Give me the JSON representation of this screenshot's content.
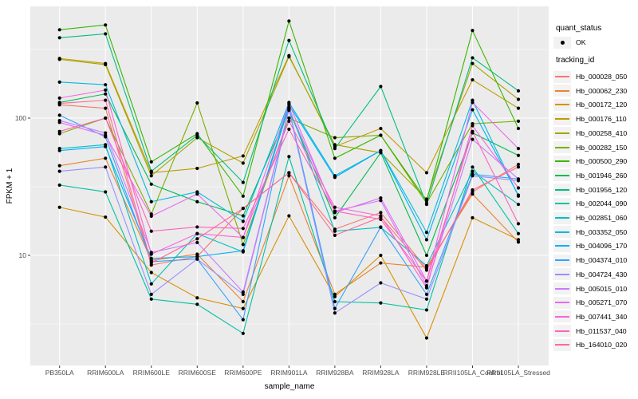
{
  "chart_style": {
    "panel_bg": "#EBEBEB",
    "grid_color": "#FFFFFF",
    "point_color": "#000000",
    "tick_color": "#333333",
    "legend_key_bg": "#F2F2F2"
  },
  "chart_data": {
    "type": "line",
    "title": "",
    "xlabel": "sample_name",
    "ylabel": "FPKM + 1",
    "y_scale": "log10",
    "y_ticks": [
      10,
      100
    ],
    "y_minor_ticks": [
      3.162,
      31.62,
      316.2
    ],
    "ylim": [
      1.6,
      650
    ],
    "grid": true,
    "legend_position": "right",
    "categories": [
      "PB350LA",
      "RRIM600LA",
      "RRIM600LE",
      "RRIM600SE",
      "RRIM600PE",
      "RRIM901LA",
      "RRIM928BA",
      "RRIM928LA",
      "RRIM928LE",
      "RRII105LA_Control",
      "RRII105LA_Stressed"
    ],
    "legend": {
      "quant_status_title": "quant_status",
      "quant_status_items": [
        {
          "label": "OK"
        }
      ],
      "tracking_title": "tracking_id"
    },
    "series": [
      {
        "name": "Hb_000028_050",
        "color": "#F8766D",
        "values": [
          125,
          118,
          8.5,
          9.8,
          22,
          40,
          15.5,
          20.5,
          8.0,
          29,
          46
        ]
      },
      {
        "name": "Hb_000062_230",
        "color": "#EA8331",
        "values": [
          45,
          51,
          9.2,
          10.2,
          4.6,
          38,
          5.2,
          8.8,
          8.2,
          28,
          12.5
        ]
      },
      {
        "name": "Hb_000172_120",
        "color": "#D89000",
        "values": [
          22.4,
          19,
          7.5,
          4.9,
          4.1,
          19.4,
          5.0,
          10,
          2.5,
          18.8,
          13
        ]
      },
      {
        "name": "Hb_000176_110",
        "color": "#C09B00",
        "values": [
          272,
          250,
          40,
          43,
          53,
          285,
          62,
          84,
          40,
          190,
          118
        ]
      },
      {
        "name": "Hb_000258_410",
        "color": "#A3A500",
        "values": [
          268,
          245,
          38,
          72,
          47,
          280,
          64,
          56,
          25.7,
          250,
          137
        ]
      },
      {
        "name": "Hb_000282_150",
        "color": "#7CAE00",
        "values": [
          77,
          100,
          20,
          129,
          12,
          100,
          72,
          75,
          24,
          91,
          95
        ]
      },
      {
        "name": "Hb_000500_290",
        "color": "#39B600",
        "values": [
          440,
          477,
          48,
          77,
          27,
          510,
          51,
          75,
          25,
          435,
          84
        ]
      },
      {
        "name": "Hb_001946_260",
        "color": "#00BB4E",
        "values": [
          130,
          150,
          33,
          24.6,
          19.4,
          114,
          18.8,
          56,
          10,
          78,
          53.5
        ]
      },
      {
        "name": "Hb_001956_120",
        "color": "#00BF7D",
        "values": [
          385,
          411,
          41,
          75,
          34,
          368,
          60,
          170,
          23.5,
          275,
          158
        ]
      },
      {
        "name": "Hb_002044_090",
        "color": "#00C1A3",
        "values": [
          32.5,
          29,
          4.8,
          4.4,
          2.7,
          52.4,
          4.6,
          4.5,
          4.0,
          44,
          14.4
        ]
      },
      {
        "name": "Hb_002851_060",
        "color": "#00BFC4",
        "values": [
          60,
          64,
          6.2,
          14.4,
          10.6,
          120,
          15,
          16,
          8.4,
          41,
          23.5
        ]
      },
      {
        "name": "Hb_003352_050",
        "color": "#00BAE0",
        "values": [
          183,
          175,
          24.6,
          29,
          17.7,
          130,
          38,
          58,
          14.7,
          135,
          27
        ]
      },
      {
        "name": "Hb_004096_170",
        "color": "#00B0F6",
        "values": [
          58,
          62,
          9.5,
          9.8,
          10.8,
          125,
          37,
          58,
          13,
          115,
          27.5
        ]
      },
      {
        "name": "Hb_004374_010",
        "color": "#35A2FF",
        "values": [
          105,
          73,
          9.0,
          9.4,
          3.4,
          118,
          4.1,
          16.1,
          5.2,
          39,
          36
        ]
      },
      {
        "name": "Hb_004724_430",
        "color": "#9590FF",
        "values": [
          41,
          44,
          5.2,
          9.4,
          5.2,
          115,
          3.8,
          6.3,
          4.8,
          38,
          35
        ]
      },
      {
        "name": "Hb_005015_010",
        "color": "#C77CFF",
        "values": [
          96,
          78,
          10.5,
          12.4,
          5.4,
          116,
          21,
          25.1,
          6.0,
          70,
          36
        ]
      },
      {
        "name": "Hb_005271_070",
        "color": "#E76BF3",
        "values": [
          93,
          75,
          19.3,
          28,
          13.5,
          128,
          20.5,
          26.2,
          6.5,
          130,
          60
        ]
      },
      {
        "name": "Hb_007441_340",
        "color": "#FA62DB",
        "values": [
          140,
          160,
          10.2,
          14.4,
          13.5,
          95,
          22.4,
          19.4,
          5.8,
          88,
          31
        ]
      },
      {
        "name": "Hb_011537_040",
        "color": "#FF62BC",
        "values": [
          80,
          100,
          15,
          16.1,
          15.7,
          83,
          21,
          18.3,
          6.5,
          80,
          17
        ]
      },
      {
        "name": "Hb_164010_020",
        "color": "#FF6A98",
        "values": [
          128,
          135,
          8.8,
          13.2,
          22,
          40,
          14,
          19,
          7.8,
          30,
          44
        ]
      }
    ]
  }
}
